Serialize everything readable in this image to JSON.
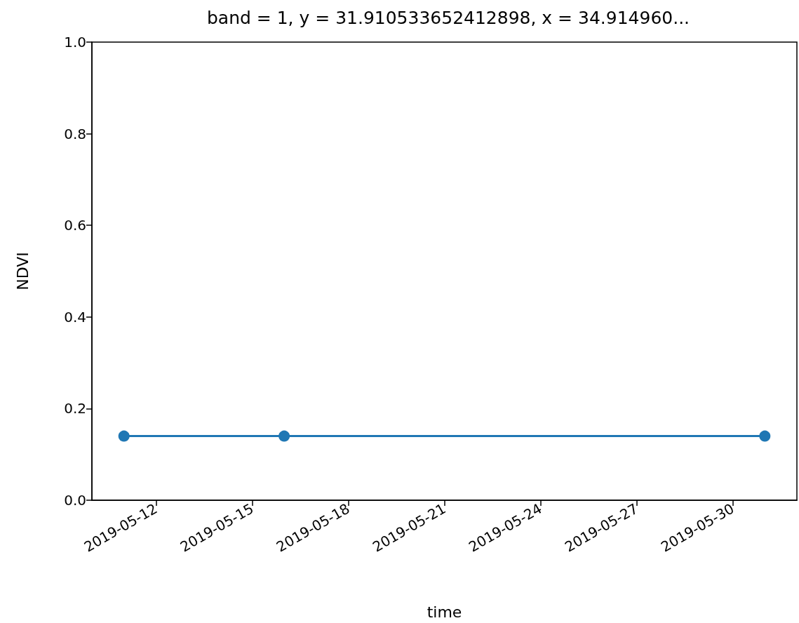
{
  "chart_data": {
    "type": "line",
    "title": "band = 1, y = 31.910533652412898, x = 34.914960...",
    "xlabel": "time",
    "ylabel": "NDVI",
    "x": [
      "2019-05-11",
      "2019-05-16",
      "2019-05-31"
    ],
    "series": [
      {
        "color": "#1f77b4",
        "values": [
          0.14,
          0.14,
          0.14
        ]
      }
    ],
    "xlim": [
      "2019-05-10",
      "2019-06-01"
    ],
    "xticks": [
      "2019-05-12",
      "2019-05-15",
      "2019-05-18",
      "2019-05-21",
      "2019-05-24",
      "2019-05-27",
      "2019-05-30"
    ],
    "ylim": [
      0,
      1
    ],
    "yticks": [
      {
        "value": 0,
        "label": "0.0"
      },
      0.2,
      0.4,
      0.6,
      0.8,
      {
        "value": 1,
        "label": "1.0"
      }
    ],
    "marker": "circle",
    "line_style": "solid"
  }
}
